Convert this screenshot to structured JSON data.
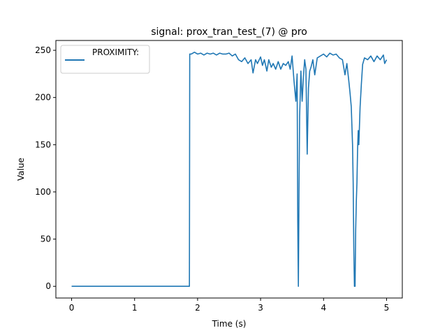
{
  "chart_data": {
    "type": "line",
    "title": "signal: prox_tran_test_(7) @ pro",
    "xlabel": "Time (s)",
    "ylabel": "Value",
    "xlim": [
      -0.25,
      5.25
    ],
    "ylim": [
      -12.4,
      260.4
    ],
    "xticks": [
      0,
      1,
      2,
      3,
      4,
      5
    ],
    "yticks": [
      0,
      50,
      100,
      150,
      200,
      250
    ],
    "grid": false,
    "legend_position": "upper-left",
    "series": [
      {
        "name": "PROXIMITY:",
        "color": "#1f77b4",
        "points": [
          [
            0.0,
            0
          ],
          [
            0.5,
            0
          ],
          [
            1.0,
            0
          ],
          [
            1.5,
            0
          ],
          [
            1.87,
            0
          ],
          [
            1.875,
            246
          ],
          [
            1.9,
            246
          ],
          [
            1.95,
            248
          ],
          [
            2.0,
            246
          ],
          [
            2.05,
            247
          ],
          [
            2.1,
            245
          ],
          [
            2.15,
            247
          ],
          [
            2.2,
            246
          ],
          [
            2.25,
            247
          ],
          [
            2.3,
            245
          ],
          [
            2.35,
            247
          ],
          [
            2.4,
            246
          ],
          [
            2.45,
            246
          ],
          [
            2.5,
            247
          ],
          [
            2.55,
            244
          ],
          [
            2.6,
            246
          ],
          [
            2.65,
            240
          ],
          [
            2.7,
            238
          ],
          [
            2.75,
            242
          ],
          [
            2.8,
            236
          ],
          [
            2.85,
            240
          ],
          [
            2.88,
            226
          ],
          [
            2.92,
            240
          ],
          [
            2.95,
            236
          ],
          [
            3.0,
            243
          ],
          [
            3.03,
            234
          ],
          [
            3.06,
            240
          ],
          [
            3.1,
            228
          ],
          [
            3.13,
            240
          ],
          [
            3.17,
            232
          ],
          [
            3.2,
            236
          ],
          [
            3.24,
            230
          ],
          [
            3.28,
            238
          ],
          [
            3.32,
            230
          ],
          [
            3.36,
            236
          ],
          [
            3.4,
            234
          ],
          [
            3.44,
            238
          ],
          [
            3.47,
            230
          ],
          [
            3.5,
            244
          ],
          [
            3.53,
            218
          ],
          [
            3.56,
            196
          ],
          [
            3.58,
            225
          ],
          [
            3.59,
            70
          ],
          [
            3.6,
            0
          ],
          [
            3.61,
            100
          ],
          [
            3.62,
            180
          ],
          [
            3.64,
            228
          ],
          [
            3.66,
            196
          ],
          [
            3.68,
            222
          ],
          [
            3.7,
            240
          ],
          [
            3.72,
            230
          ],
          [
            3.74,
            140
          ],
          [
            3.76,
            210
          ],
          [
            3.78,
            228
          ],
          [
            3.8,
            232
          ],
          [
            3.83,
            240
          ],
          [
            3.86,
            224
          ],
          [
            3.9,
            242
          ],
          [
            3.95,
            244
          ],
          [
            4.0,
            246
          ],
          [
            4.05,
            243
          ],
          [
            4.1,
            247
          ],
          [
            4.15,
            245
          ],
          [
            4.2,
            246
          ],
          [
            4.25,
            242
          ],
          [
            4.3,
            240
          ],
          [
            4.34,
            224
          ],
          [
            4.37,
            236
          ],
          [
            4.4,
            218
          ],
          [
            4.42,
            205
          ],
          [
            4.44,
            190
          ],
          [
            4.46,
            150
          ],
          [
            4.47,
            110
          ],
          [
            4.48,
            40
          ],
          [
            4.49,
            0
          ],
          [
            4.5,
            0
          ],
          [
            4.51,
            60
          ],
          [
            4.52,
            90
          ],
          [
            4.53,
            110
          ],
          [
            4.54,
            145
          ],
          [
            4.55,
            165
          ],
          [
            4.56,
            150
          ],
          [
            4.58,
            190
          ],
          [
            4.6,
            214
          ],
          [
            4.62,
            235
          ],
          [
            4.65,
            242
          ],
          [
            4.7,
            240
          ],
          [
            4.75,
            244
          ],
          [
            4.8,
            238
          ],
          [
            4.85,
            244
          ],
          [
            4.9,
            240
          ],
          [
            4.95,
            245
          ],
          [
            4.97,
            236
          ],
          [
            5.0,
            240
          ]
        ]
      }
    ]
  }
}
